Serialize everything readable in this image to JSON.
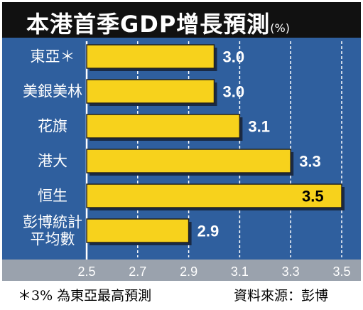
{
  "title": "本港首季GDP增長預測",
  "title_unit": "(%)",
  "footnote": "＊3% 為東亞最高預測",
  "source": "資料來源：彭博",
  "colors": {
    "background": "#2f5f9e",
    "title_bar": "#111111",
    "bar_fill": "#f7d21c",
    "axis_strip": "#9aa2ad",
    "grid": "#ffffff"
  },
  "chart_data": {
    "type": "bar",
    "orientation": "horizontal",
    "categories": [
      "東亞＊",
      "美銀美林",
      "花旗",
      "港大",
      "恒生",
      "彭博統計平均數"
    ],
    "category_lines": [
      [
        "東亞＊"
      ],
      [
        "美銀美林"
      ],
      [
        "花旗"
      ],
      [
        "港大"
      ],
      [
        "恒生"
      ],
      [
        "彭博統計",
        "平均數"
      ]
    ],
    "values": [
      3.0,
      3.0,
      3.1,
      3.3,
      3.5,
      2.9
    ],
    "value_labels": [
      "3.0",
      "3.0",
      "3.1",
      "3.3",
      "3.5",
      "2.9"
    ],
    "xlim": [
      2.5,
      3.5
    ],
    "xticks": [
      2.5,
      2.7,
      2.9,
      3.1,
      3.3,
      3.5
    ],
    "tick_labels": [
      "2.5",
      "2.7",
      "2.9",
      "3.1",
      "3.3",
      "3.5"
    ],
    "grid": "vertical dashed",
    "highlight_index": 4
  }
}
